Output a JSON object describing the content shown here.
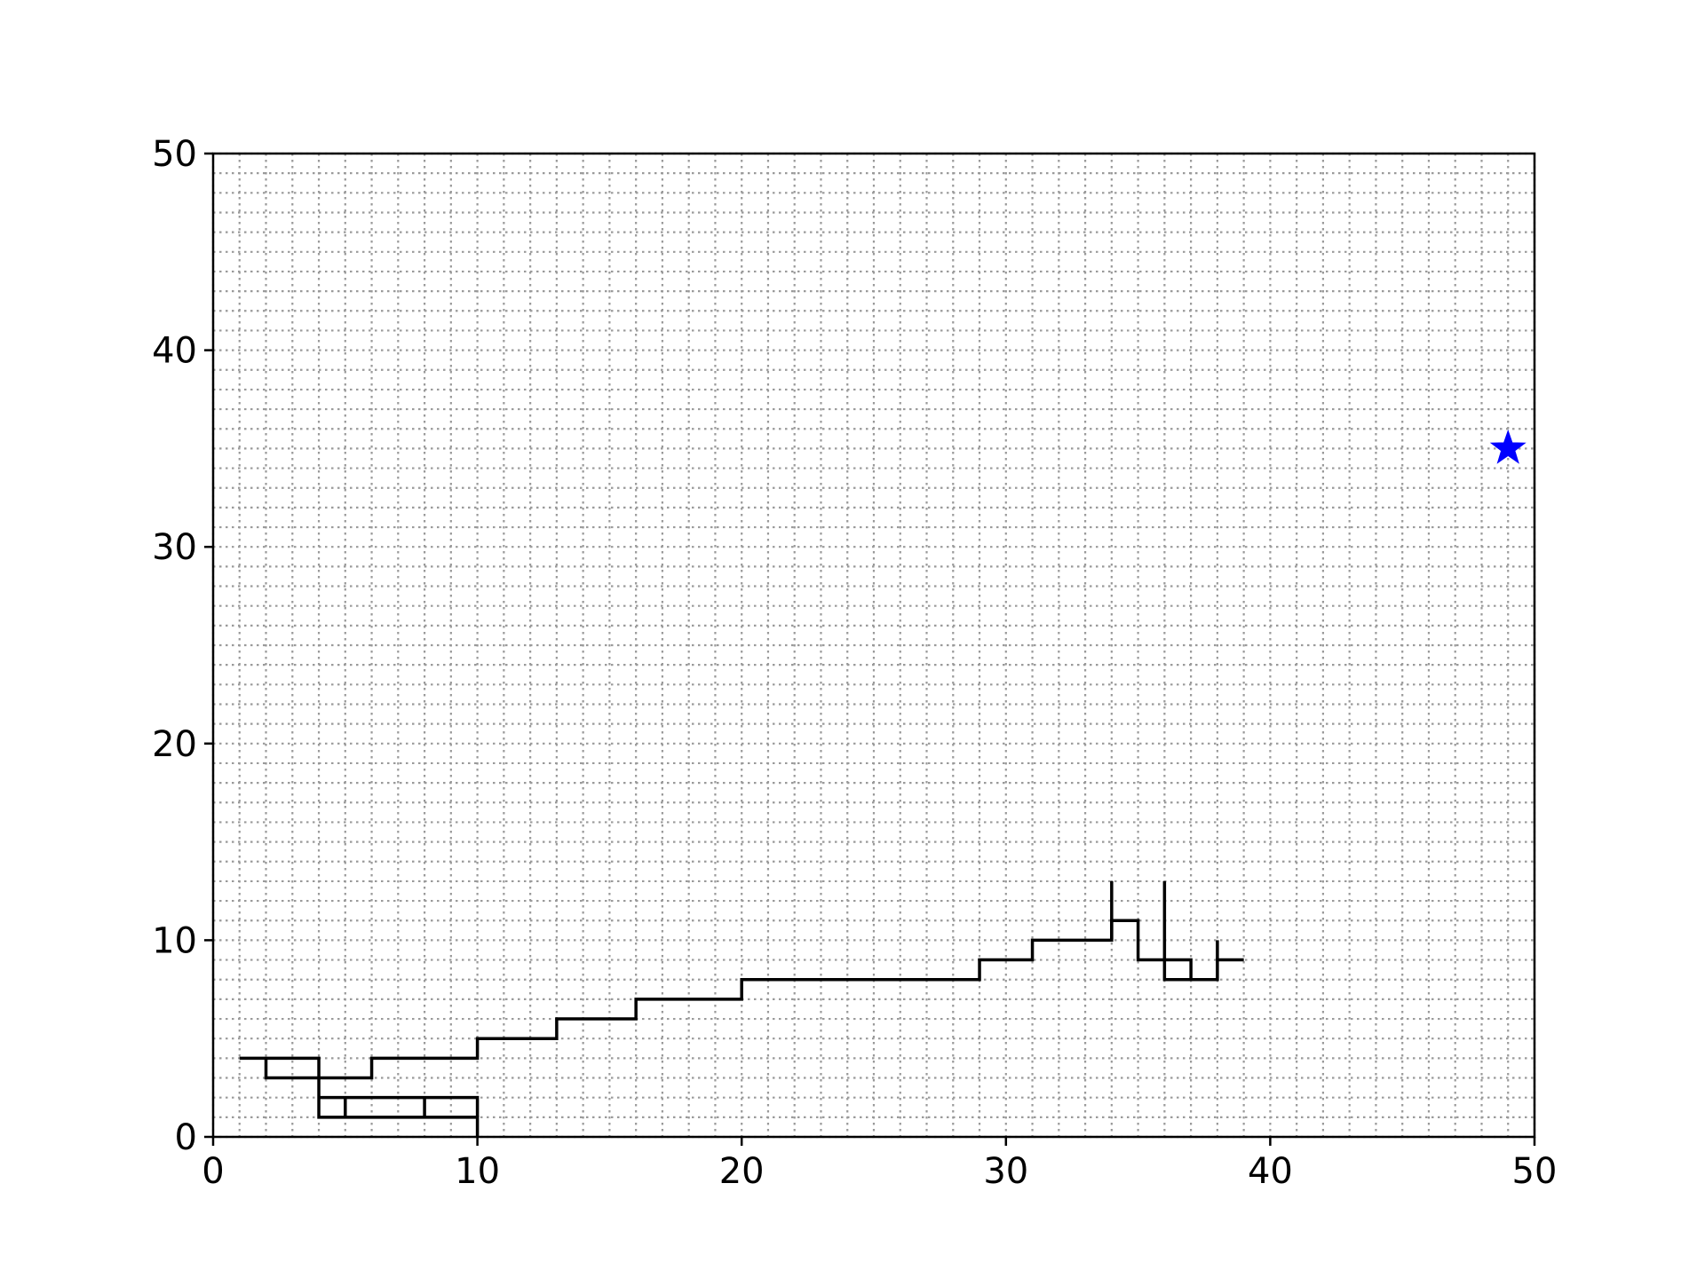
{
  "chart_data": {
    "type": "line",
    "title": "",
    "xlabel": "",
    "ylabel": "",
    "xlim": [
      0,
      50
    ],
    "ylim": [
      0,
      50
    ],
    "xticks": [
      0,
      10,
      20,
      30,
      40,
      50
    ],
    "yticks": [
      0,
      10,
      20,
      30,
      40,
      50
    ],
    "x_tick_labels": [
      "0",
      "10",
      "20",
      "30",
      "40",
      "50"
    ],
    "y_tick_labels": [
      "0",
      "10",
      "20",
      "30",
      "40",
      "50"
    ],
    "grid": true,
    "grid_style": "dotted",
    "grid_spacing": 1,
    "legend": "none",
    "series": [
      {
        "color": "#000000",
        "style": "steps",
        "segments": [
          [
            [
              1,
              4
            ],
            [
              4,
              4
            ],
            [
              4,
              1
            ],
            [
              10,
              1
            ],
            [
              10,
              0
            ]
          ],
          [
            [
              2,
              4
            ],
            [
              2,
              3
            ],
            [
              6,
              3
            ],
            [
              6,
              4
            ],
            [
              10,
              4
            ],
            [
              10,
              5
            ],
            [
              13,
              5
            ],
            [
              13,
              6
            ],
            [
              16,
              6
            ],
            [
              16,
              7
            ],
            [
              20,
              7
            ],
            [
              20,
              8
            ],
            [
              29,
              8
            ],
            [
              29,
              9
            ],
            [
              31,
              9
            ],
            [
              31,
              10
            ],
            [
              34,
              10
            ],
            [
              34,
              11
            ],
            [
              35,
              11
            ],
            [
              35,
              9
            ],
            [
              37,
              9
            ],
            [
              37,
              8
            ],
            [
              38,
              8
            ],
            [
              38,
              9
            ],
            [
              39,
              9
            ]
          ],
          [
            [
              4,
              2
            ],
            [
              10,
              2
            ],
            [
              10,
              1
            ]
          ],
          [
            [
              5,
              2
            ],
            [
              5,
              1
            ]
          ],
          [
            [
              8,
              2
            ],
            [
              8,
              1
            ]
          ],
          [
            [
              34,
              10
            ],
            [
              34,
              13
            ]
          ],
          [
            [
              36,
              13
            ],
            [
              36,
              8
            ],
            [
              37,
              8
            ]
          ],
          [
            [
              38,
              9
            ],
            [
              38,
              10
            ]
          ]
        ]
      },
      {
        "color": "#0000ff",
        "marker": "star",
        "points": [
          [
            49,
            35
          ]
        ]
      }
    ]
  }
}
